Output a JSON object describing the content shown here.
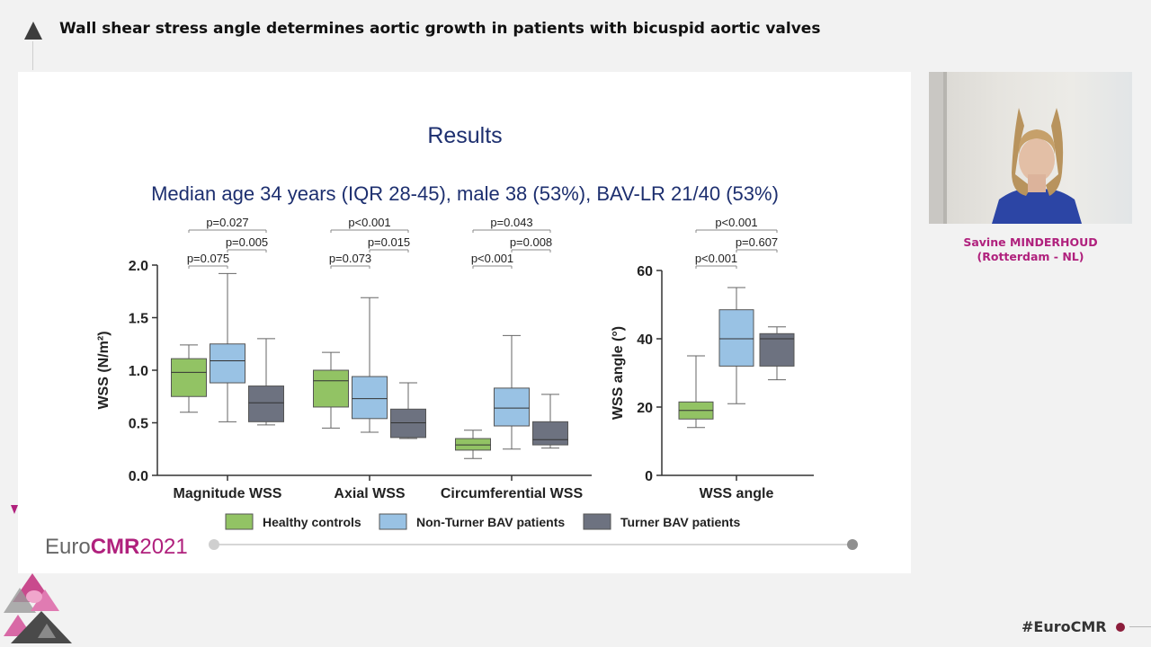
{
  "header": {
    "title": "Wall shear stress angle determines aortic growth in patients with bicuspid aortic valves"
  },
  "speaker": {
    "name": "Savine MINDERHOUD",
    "affiliation": "(Rotterdam - NL)"
  },
  "footer": {
    "hashtag": "#EuroCMR"
  },
  "slide": {
    "title": "Results",
    "subtitle": "Median age 34 years (IQR 28-45), male 38 (53%), BAV-LR 21/40 (53%)",
    "logo_euro": "Euro",
    "logo_cmr": "CMR",
    "logo_year": "2021",
    "colors": {
      "title": "#1d2f6f",
      "accent": "#b0217d"
    }
  },
  "chart_data": [
    {
      "type": "boxplot",
      "title": "",
      "ylabel": "WSS (N/m²)",
      "ylim": [
        0,
        2.0
      ],
      "yticks": [
        "0.0",
        "0.5",
        "1.0",
        "1.5",
        "2.0"
      ],
      "categories": [
        "Magnitude WSS",
        "Axial WSS",
        "Circumferential WSS"
      ],
      "series": [
        {
          "name": "Healthy controls",
          "color": "#92c364",
          "boxes": [
            {
              "min": 0.6,
              "q1": 0.75,
              "median": 0.98,
              "q3": 1.11,
              "max": 1.24
            },
            {
              "min": 0.45,
              "q1": 0.65,
              "median": 0.9,
              "q3": 1.0,
              "max": 1.17
            },
            {
              "min": 0.16,
              "q1": 0.24,
              "median": 0.29,
              "q3": 0.35,
              "max": 0.43
            }
          ]
        },
        {
          "name": "Non-Turner BAV patients",
          "color": "#99c2e4",
          "boxes": [
            {
              "min": 0.51,
              "q1": 0.88,
              "median": 1.09,
              "q3": 1.25,
              "max": 1.92
            },
            {
              "min": 0.41,
              "q1": 0.54,
              "median": 0.73,
              "q3": 0.94,
              "max": 1.69
            },
            {
              "min": 0.25,
              "q1": 0.47,
              "median": 0.64,
              "q3": 0.83,
              "max": 1.33
            }
          ]
        },
        {
          "name": "Turner BAV patients",
          "color": "#6d7280",
          "boxes": [
            {
              "min": 0.48,
              "q1": 0.51,
              "median": 0.69,
              "q3": 0.85,
              "max": 1.3
            },
            {
              "min": 0.35,
              "q1": 0.36,
              "median": 0.5,
              "q3": 0.63,
              "max": 0.88
            },
            {
              "min": 0.26,
              "q1": 0.29,
              "median": 0.34,
              "q3": 0.51,
              "max": 0.77
            }
          ]
        }
      ],
      "annotations": [
        {
          "category": 0,
          "from": 0,
          "to": 2,
          "level": 0,
          "text": "p=0.027"
        },
        {
          "category": 0,
          "from": 1,
          "to": 2,
          "level": 1,
          "text": "p=0.005"
        },
        {
          "category": 0,
          "from": 0,
          "to": 1,
          "level": 2,
          "text": "p=0.075"
        },
        {
          "category": 1,
          "from": 0,
          "to": 2,
          "level": 0,
          "text": "p<0.001"
        },
        {
          "category": 1,
          "from": 1,
          "to": 2,
          "level": 1,
          "text": "p=0.015"
        },
        {
          "category": 1,
          "from": 0,
          "to": 1,
          "level": 2,
          "text": "p=0.073"
        },
        {
          "category": 2,
          "from": 0,
          "to": 2,
          "level": 0,
          "text": "p=0.043"
        },
        {
          "category": 2,
          "from": 1,
          "to": 2,
          "level": 1,
          "text": "p=0.008"
        },
        {
          "category": 2,
          "from": 0,
          "to": 1,
          "level": 2,
          "text": "p<0.001"
        }
      ],
      "legend_position": "bottom"
    },
    {
      "type": "boxplot",
      "title": "",
      "ylabel": "WSS angle (°)",
      "ylim": [
        0,
        60
      ],
      "yticks": [
        "0",
        "20",
        "40",
        "60"
      ],
      "categories": [
        "WSS angle"
      ],
      "series": [
        {
          "name": "Healthy controls",
          "color": "#92c364",
          "boxes": [
            {
              "min": 14,
              "q1": 16.5,
              "median": 19,
              "q3": 21.5,
              "max": 35
            }
          ]
        },
        {
          "name": "Non-Turner BAV patients",
          "color": "#99c2e4",
          "boxes": [
            {
              "min": 21,
              "q1": 32,
              "median": 40,
              "q3": 48.5,
              "max": 55
            }
          ]
        },
        {
          "name": "Turner BAV patients",
          "color": "#6d7280",
          "boxes": [
            {
              "min": 28,
              "q1": 32,
              "median": 40,
              "q3": 41.5,
              "max": 43.5
            }
          ]
        }
      ],
      "annotations": [
        {
          "category": 0,
          "from": 0,
          "to": 2,
          "level": 0,
          "text": "p<0.001"
        },
        {
          "category": 0,
          "from": 1,
          "to": 2,
          "level": 1,
          "text": "p=0.607"
        },
        {
          "category": 0,
          "from": 0,
          "to": 1,
          "level": 2,
          "text": "p<0.001"
        }
      ]
    }
  ],
  "legend": [
    {
      "label": "Healthy controls",
      "color": "#92c364"
    },
    {
      "label": "Non-Turner BAV patients",
      "color": "#99c2e4"
    },
    {
      "label": "Turner BAV patients",
      "color": "#6d7280"
    }
  ]
}
